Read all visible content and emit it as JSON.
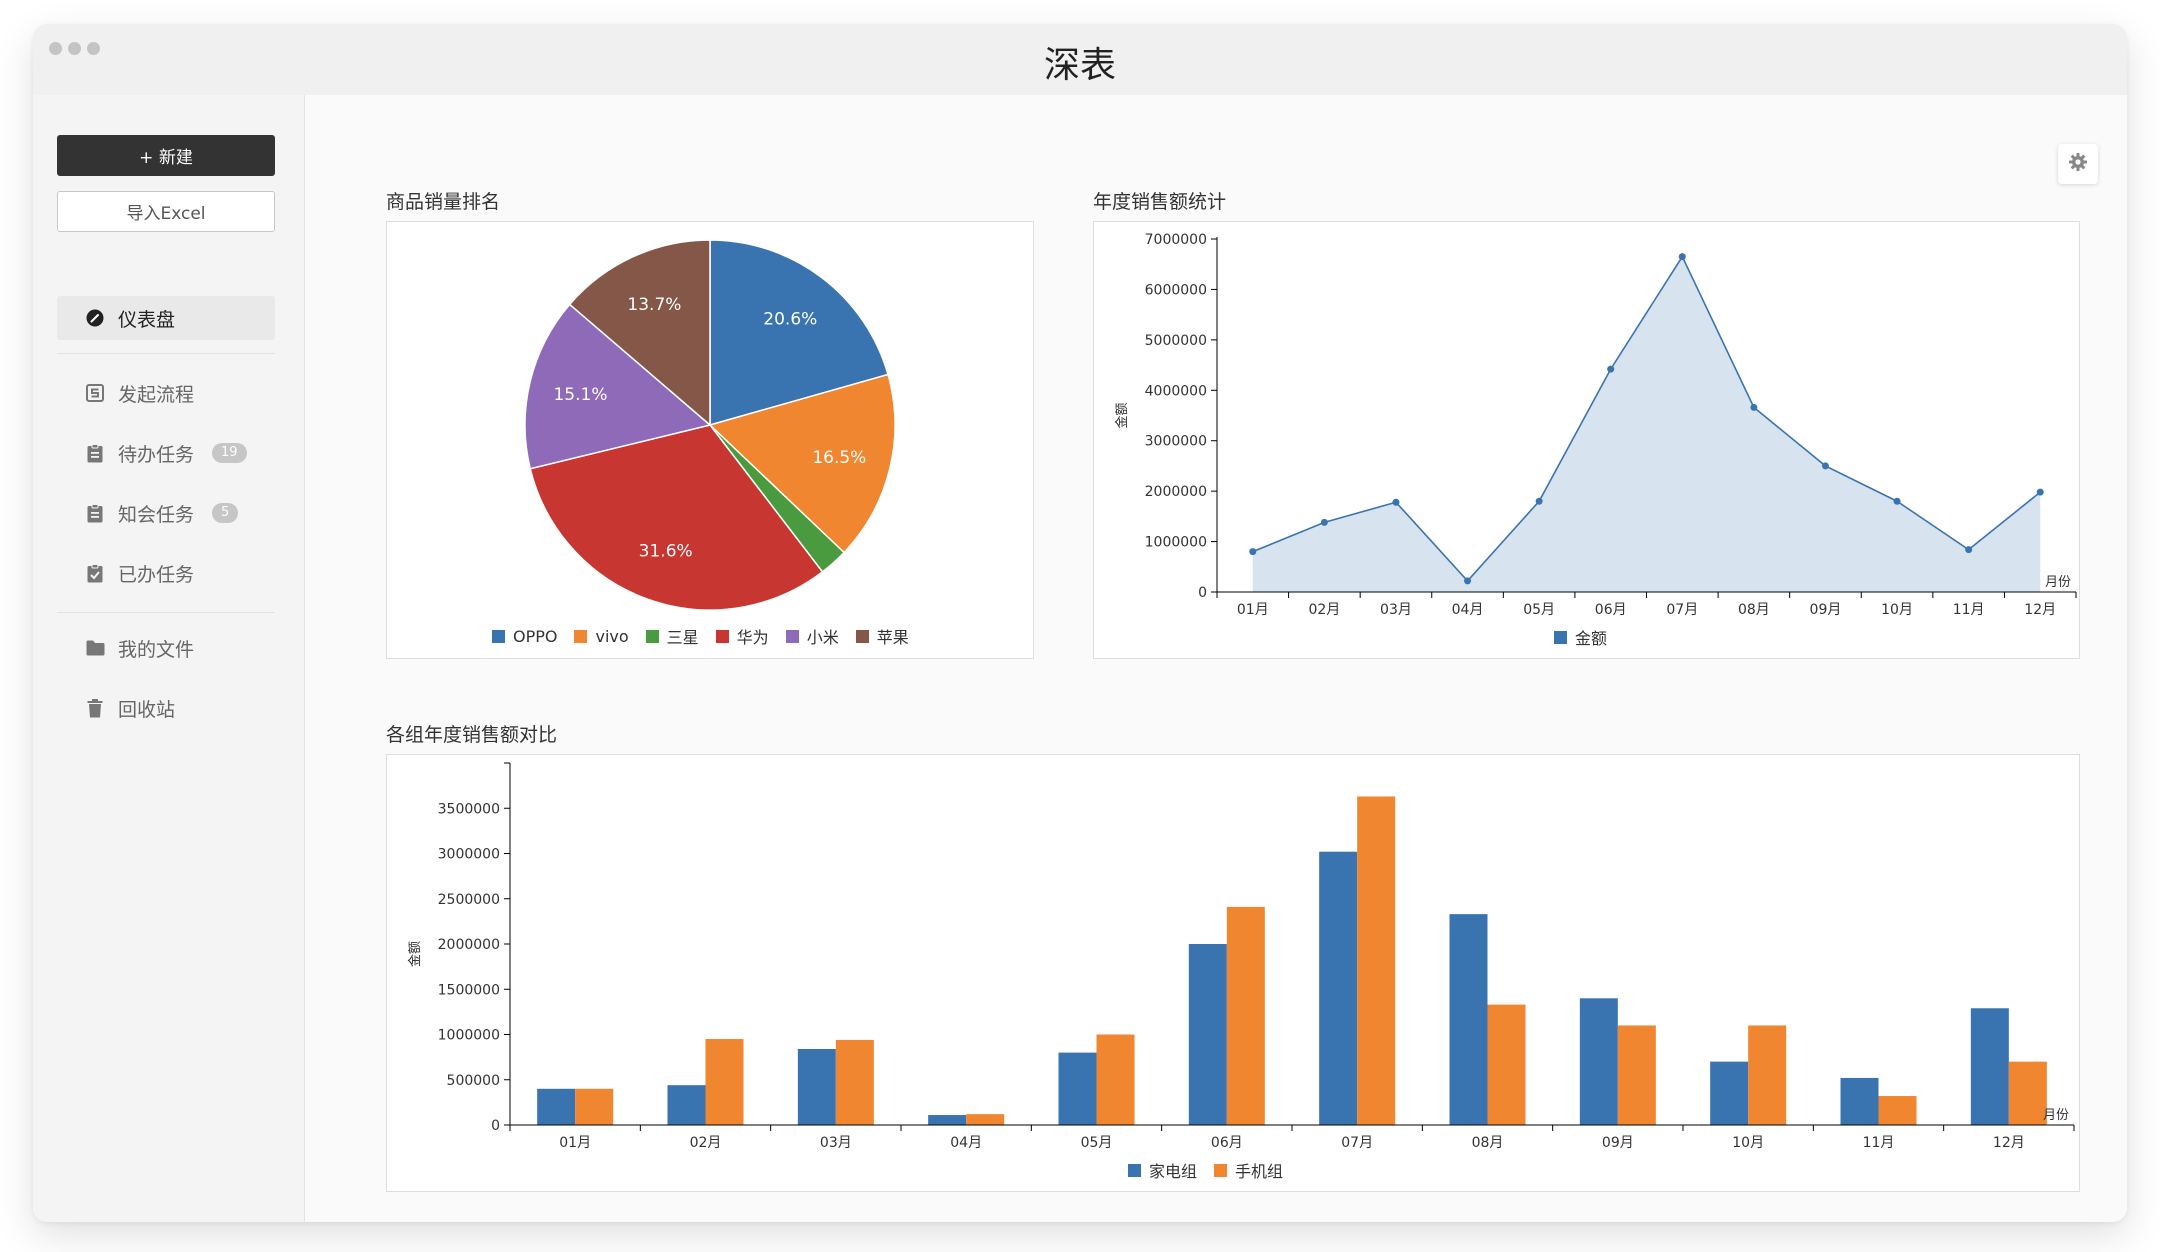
{
  "window": {
    "title": "深表"
  },
  "sidebar": {
    "new_button": "+ 新建",
    "import_button": "导入Excel",
    "items": [
      {
        "label": "仪表盘",
        "icon": "dashboard-icon",
        "active": true
      },
      {
        "label": "发起流程",
        "icon": "flow-icon"
      },
      {
        "label": "待办任务",
        "icon": "clipboard-icon",
        "badge": "19"
      },
      {
        "label": "知会任务",
        "icon": "clipboard-icon",
        "badge": "5"
      },
      {
        "label": "已办任务",
        "icon": "clipboard-check-icon"
      },
      {
        "label": "我的文件",
        "icon": "folder-icon"
      },
      {
        "label": "回收站",
        "icon": "trash-icon"
      }
    ]
  },
  "settings": {
    "icon": "gear-icon"
  },
  "charts": {
    "pie": {
      "title": "商品销量排名",
      "colors": [
        "#3a74b0",
        "#f0862f",
        "#4a9a3f",
        "#c73630",
        "#8e6ab9",
        "#855749"
      ],
      "legend": [
        "OPPO",
        "vivo",
        "三星",
        "华为",
        "小米",
        "苹果"
      ]
    },
    "line": {
      "title": "年度销售额统计",
      "legend": [
        "金额"
      ]
    },
    "bar": {
      "title": "各组年度销售额对比",
      "legend": [
        "家电组",
        "手机组"
      ]
    }
  },
  "chart_data": [
    {
      "type": "pie",
      "title": "商品销量排名",
      "slices": [
        {
          "name": "OPPO",
          "value": 20.6,
          "label": "20.6%"
        },
        {
          "name": "vivo",
          "value": 16.5,
          "label": "16.5%"
        },
        {
          "name": "三星",
          "value": 2.5,
          "label": ""
        },
        {
          "name": "华为",
          "value": 31.6,
          "label": "31.6%"
        },
        {
          "name": "小米",
          "value": 15.1,
          "label": "15.1%"
        },
        {
          "name": "苹果",
          "value": 13.7,
          "label": "13.7%"
        }
      ],
      "legend_position": "bottom"
    },
    {
      "type": "area",
      "title": "年度销售额统计",
      "xlabel": "月份",
      "ylabel": "金额",
      "categories": [
        "01月",
        "02月",
        "03月",
        "04月",
        "05月",
        "06月",
        "07月",
        "08月",
        "09月",
        "10月",
        "11月",
        "12月"
      ],
      "series": [
        {
          "name": "金额",
          "values": [
            800000,
            1380000,
            1780000,
            220000,
            1800000,
            4420000,
            6650000,
            3660000,
            2500000,
            1800000,
            840000,
            1980000
          ]
        }
      ],
      "ylim": [
        0,
        7000000
      ],
      "yticks": [
        0,
        1000000,
        2000000,
        3000000,
        4000000,
        5000000,
        6000000,
        7000000
      ],
      "legend_position": "bottom",
      "grid": false
    },
    {
      "type": "bar",
      "title": "各组年度销售额对比",
      "xlabel": "月份",
      "ylabel": "金额",
      "categories": [
        "01月",
        "02月",
        "03月",
        "04月",
        "05月",
        "06月",
        "07月",
        "08月",
        "09月",
        "10月",
        "11月",
        "12月"
      ],
      "series": [
        {
          "name": "家电组",
          "values": [
            400000,
            440000,
            840000,
            110000,
            800000,
            2000000,
            3020000,
            2330000,
            1400000,
            700000,
            520000,
            1290000
          ]
        },
        {
          "name": "手机组",
          "values": [
            400000,
            950000,
            940000,
            120000,
            1000000,
            2410000,
            3630000,
            1330000,
            1100000,
            1100000,
            320000,
            700000
          ]
        }
      ],
      "ylim": [
        0,
        4000000
      ],
      "yticks": [
        0,
        500000,
        1000000,
        1500000,
        2000000,
        2500000,
        3000000,
        3500000
      ],
      "legend_position": "bottom",
      "grid": false
    }
  ]
}
